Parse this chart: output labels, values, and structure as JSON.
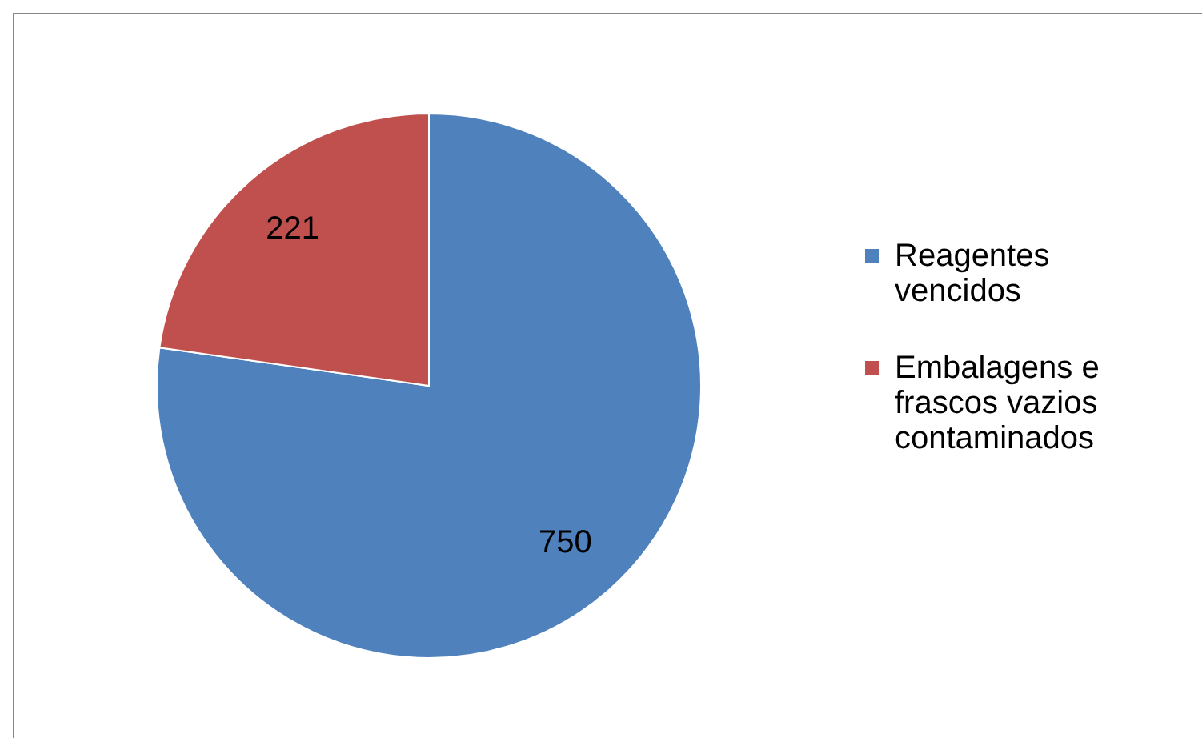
{
  "chart_data": {
    "type": "pie",
    "categories": [
      "Reagentes vencidos",
      "Embalagens e frascos vazios contaminados"
    ],
    "values": [
      750,
      221
    ],
    "colors": [
      "#4f81bd",
      "#c0504d"
    ],
    "data_labels": true,
    "legend": "right"
  }
}
